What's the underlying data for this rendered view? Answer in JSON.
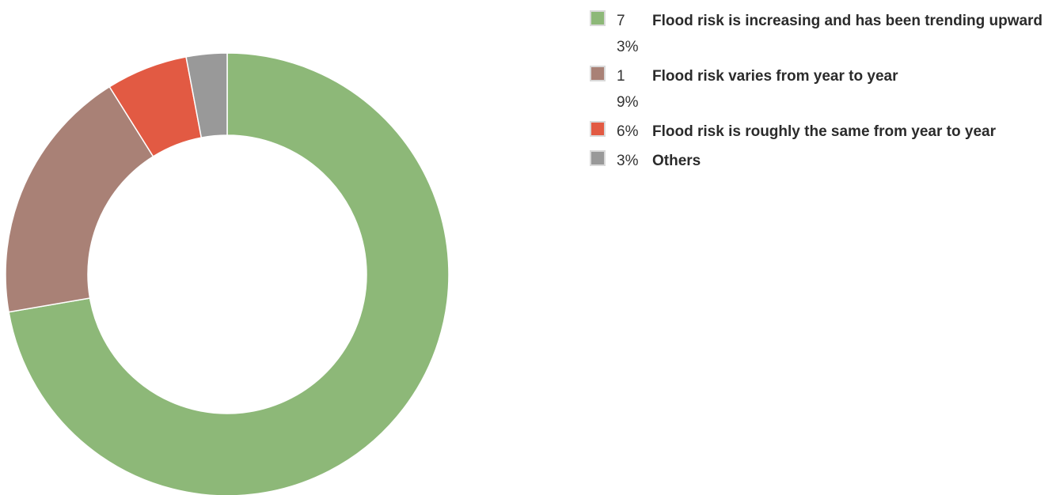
{
  "chart_data": {
    "type": "pie",
    "variant": "donut",
    "legend_position": "right",
    "slices": [
      {
        "label": "Flood risk is increasing and has been trending upward",
        "value": 73,
        "value_label": "73%",
        "color": "#8db878"
      },
      {
        "label": "Flood risk varies from year to year",
        "value": 19,
        "value_label": "19%",
        "color": "#a98176"
      },
      {
        "label": "Flood risk is roughly the same from year to year",
        "value": 6,
        "value_label": "6%",
        "color": "#e25a43"
      },
      {
        "label": "Others",
        "value": 3,
        "value_label": "3%",
        "color": "#999999"
      }
    ]
  }
}
